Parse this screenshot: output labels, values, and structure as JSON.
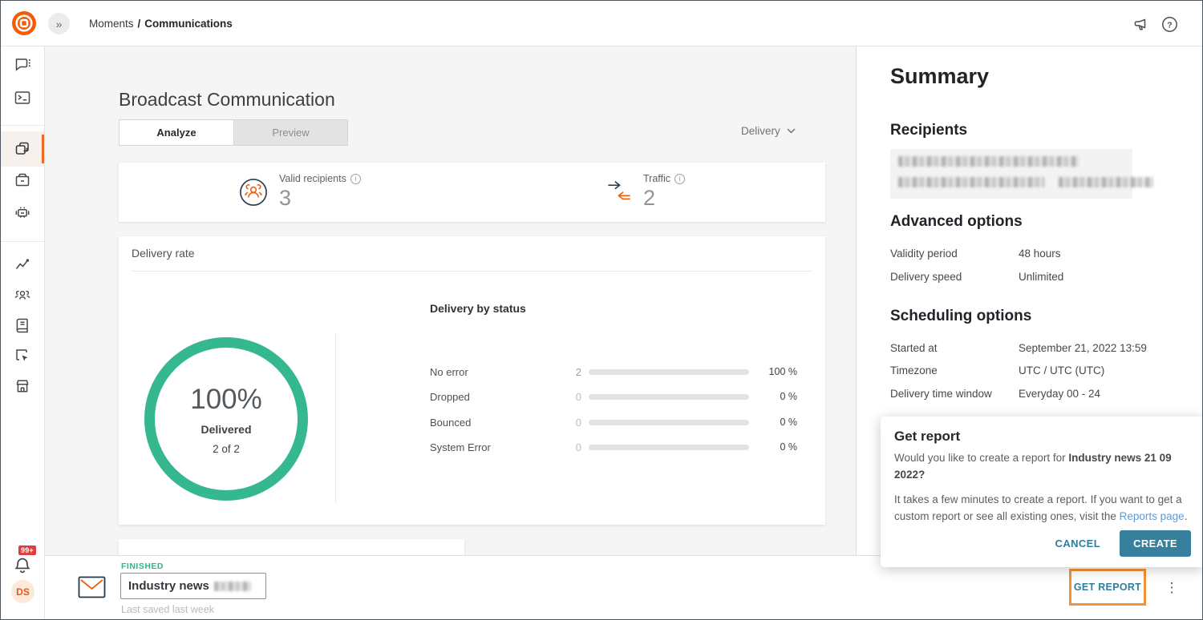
{
  "colors": {
    "brand_orange": "#f25c05",
    "active_indicator": "#eb6a2a",
    "success_teal": "#35b78f",
    "action_teal_blue": "#36809e",
    "link_blue": "#5b9bd5",
    "highlight_orange": "#f09338",
    "badge_red": "#e03e3e"
  },
  "icons": {
    "collapse_glyph": "»",
    "kebab_glyph": "⋮",
    "help_glyph": "?"
  },
  "topbar": {
    "breadcrumb_section": "Moments",
    "breadcrumb_separator": "/",
    "breadcrumb_page": "Communications"
  },
  "sidebar": {
    "badge": "99+",
    "avatar": "DS",
    "items": [
      "conversations",
      "developer-console",
      "moments",
      "packages",
      "chatbot",
      "analytics",
      "people",
      "knowledge-base",
      "exit-flows",
      "marketplace"
    ]
  },
  "main": {
    "title": "Broadcast Communication",
    "tabs": [
      {
        "label": "Analyze",
        "active": true
      },
      {
        "label": "Preview",
        "active": false
      }
    ],
    "channel_dropdown": "Delivery",
    "stats": [
      {
        "label": "Valid recipients",
        "value": "3"
      },
      {
        "label": "Traffic",
        "value": "2"
      }
    ],
    "delivery_rate": {
      "card_title": "Delivery rate",
      "donut": {
        "percent": "100%",
        "label": "Delivered",
        "sub": "2 of 2"
      },
      "status_title": "Delivery by status",
      "rows": [
        {
          "label": "No error",
          "count": "2",
          "percent": "100 %",
          "fill": 100
        },
        {
          "label": "Dropped",
          "count": "0",
          "percent": "0 %",
          "fill": 0
        },
        {
          "label": "Bounced",
          "count": "0",
          "percent": "0 %",
          "fill": 0
        },
        {
          "label": "System Error",
          "count": "0",
          "percent": "0 %",
          "fill": 0
        }
      ]
    }
  },
  "summary": {
    "title": "Summary",
    "recipients_title": "Recipients",
    "advanced_title": "Advanced options",
    "advanced_rows": [
      {
        "label": "Validity period",
        "value": "48 hours"
      },
      {
        "label": "Delivery speed",
        "value": "Unlimited"
      }
    ],
    "scheduling_title": "Scheduling options",
    "scheduling_rows": [
      {
        "label": "Started at",
        "value": "September 21, 2022 13:59"
      },
      {
        "label": "Timezone",
        "value": "UTC / UTC (UTC)"
      },
      {
        "label": "Delivery time window",
        "value": "Everyday 00 - 24"
      }
    ]
  },
  "report_popup": {
    "title": "Get report",
    "body_prefix": "Would you like to create a report for ",
    "body_bold": "Industry news 21 09 2022",
    "body_suffix": "?",
    "body2_prefix": "It takes a few minutes to create a report. If you want to get a custom report or see all existing ones, visit the ",
    "body2_link": "Reports page",
    "body2_suffix": ".",
    "cancel_label": "CANCEL",
    "create_label": "CREATE"
  },
  "footer": {
    "status": "FINISHED",
    "name": "Industry news",
    "last_saved": "Last saved last week",
    "get_report": "GET REPORT"
  },
  "chart_data": [
    {
      "type": "pie",
      "title": "Delivery rate",
      "labels": [
        "Delivered"
      ],
      "values": [
        100
      ],
      "center_text": "100%",
      "center_sub": "Delivered 2 of 2",
      "color": "#35b78f"
    },
    {
      "type": "bar",
      "title": "Delivery by status",
      "categories": [
        "No error",
        "Dropped",
        "Bounced",
        "System Error"
      ],
      "values": [
        2,
        0,
        0,
        0
      ],
      "percents": [
        100,
        0,
        0,
        0
      ],
      "xlim": [
        0,
        100
      ],
      "orientation": "horizontal"
    }
  ]
}
